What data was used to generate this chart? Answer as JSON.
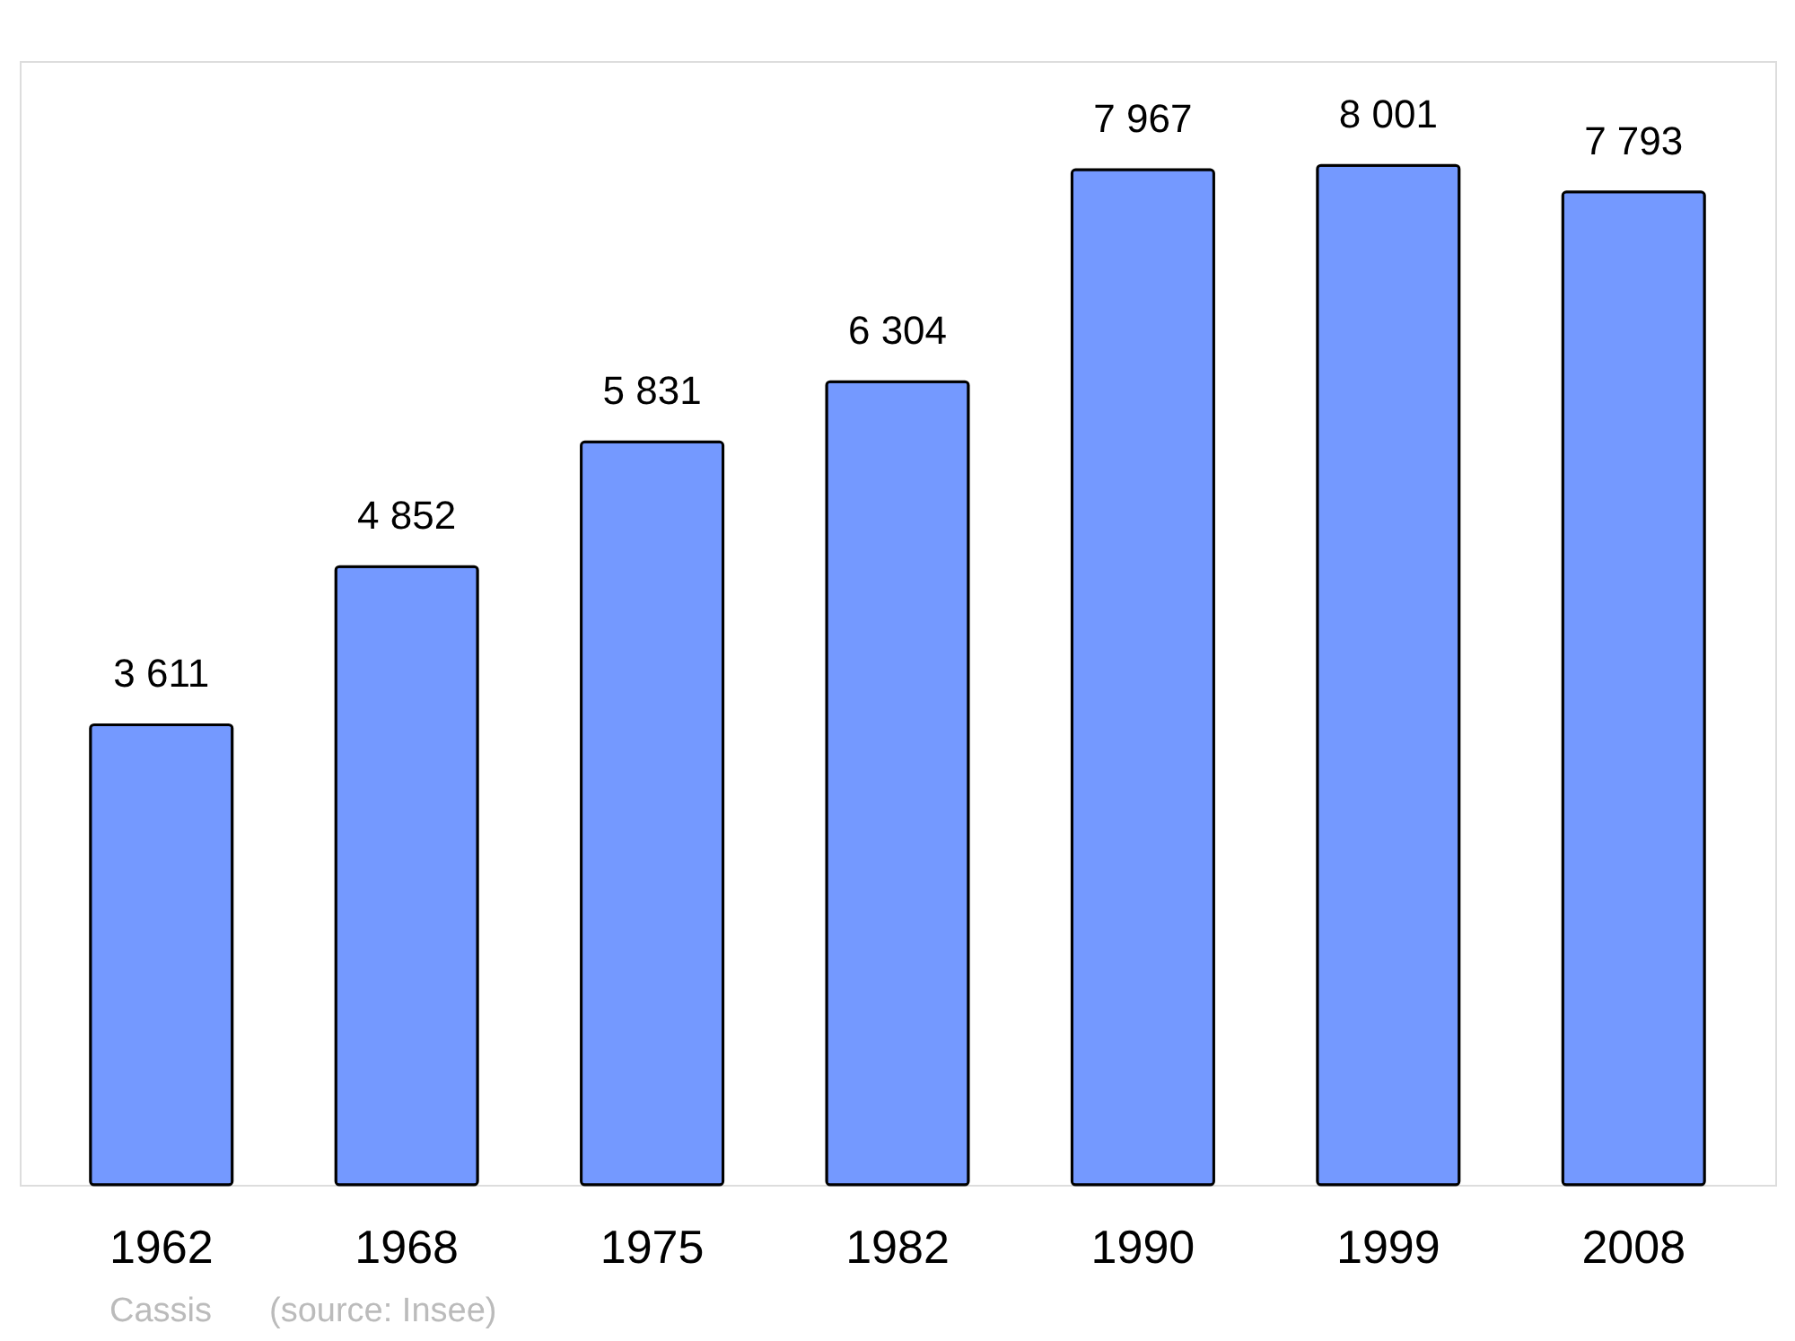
{
  "chart_data": {
    "type": "bar",
    "categories": [
      "1962",
      "1968",
      "1975",
      "1982",
      "1990",
      "1999",
      "2008"
    ],
    "values": [
      3611,
      4852,
      5831,
      6304,
      7967,
      8001,
      7793
    ],
    "color": "#7499ff",
    "value_labels": [
      "3 611",
      "4 852",
      "5 831",
      "6 304",
      "7 967",
      "8 001",
      "7 793"
    ],
    "ylim": [
      0,
      8820
    ],
    "tick_labels": "x",
    "annotations": [
      "Cassis",
      "(source: Insee)"
    ]
  }
}
